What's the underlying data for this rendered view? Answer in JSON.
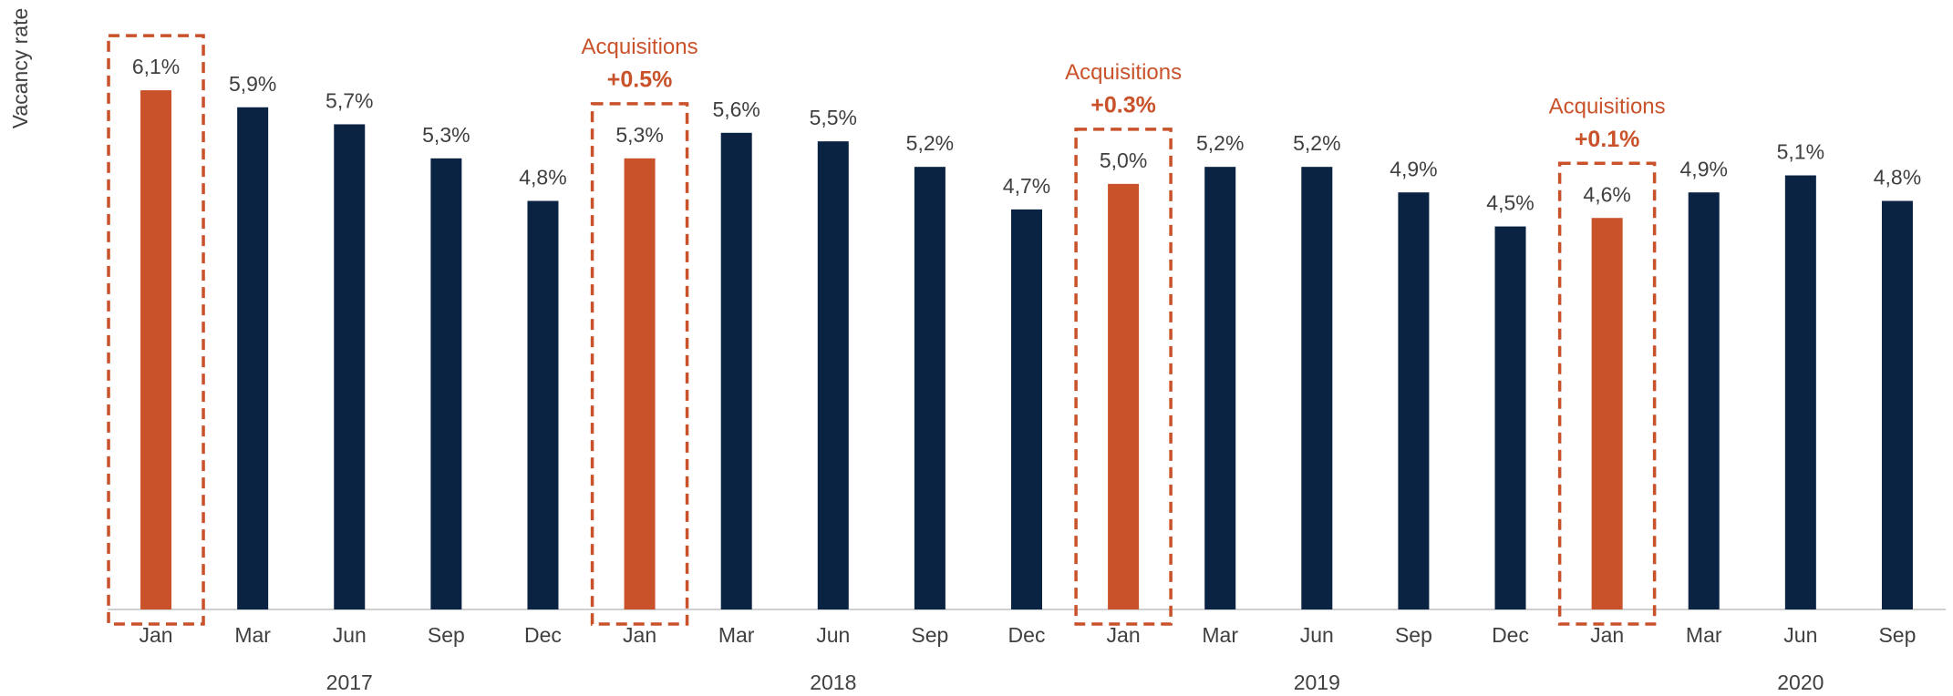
{
  "chart_data": {
    "type": "bar",
    "ylabel": "Vacancy rate",
    "categories": [
      "Jan",
      "Mar",
      "Jun",
      "Sep",
      "Dec",
      "Jan",
      "Mar",
      "Jun",
      "Sep",
      "Dec",
      "Jan",
      "Mar",
      "Jun",
      "Sep",
      "Dec",
      "Jan",
      "Mar",
      "Jun",
      "Sep"
    ],
    "x_groups": [
      null,
      null,
      "2017",
      null,
      null,
      null,
      null,
      "2018",
      null,
      null,
      null,
      null,
      "2019",
      null,
      null,
      null,
      null,
      "2020",
      null
    ],
    "values": [
      6.1,
      5.9,
      5.7,
      5.3,
      4.8,
      5.3,
      5.6,
      5.5,
      5.2,
      4.7,
      5.0,
      5.2,
      5.2,
      4.9,
      4.5,
      4.6,
      4.9,
      5.1,
      4.8
    ],
    "value_labels": [
      "6,1%",
      "5,9%",
      "5,7%",
      "5,3%",
      "4,8%",
      "5,3%",
      "5,6%",
      "5,5%",
      "5,2%",
      "4,7%",
      "5,0%",
      "5,2%",
      "5,2%",
      "4,9%",
      "4,5%",
      "4,6%",
      "4,9%",
      "5,1%",
      "4,8%"
    ],
    "colors": [
      "#c9522a",
      "#0a2342",
      "#0a2342",
      "#0a2342",
      "#0a2342",
      "#c9522a",
      "#0a2342",
      "#0a2342",
      "#0a2342",
      "#0a2342",
      "#c9522a",
      "#0a2342",
      "#0a2342",
      "#0a2342",
      "#0a2342",
      "#c9522a",
      "#0a2342",
      "#0a2342",
      "#0a2342"
    ],
    "ylim": [
      0,
      7
    ],
    "highlighted": [
      0,
      5,
      10,
      15
    ],
    "annotations": [
      {
        "index": 5,
        "text": "Acquisitions",
        "change": "+0.5%"
      },
      {
        "index": 10,
        "text": "Acquisitions",
        "change": "+0.3%"
      },
      {
        "index": 15,
        "text": "Acquisitions",
        "change": "+0.1%"
      }
    ]
  }
}
